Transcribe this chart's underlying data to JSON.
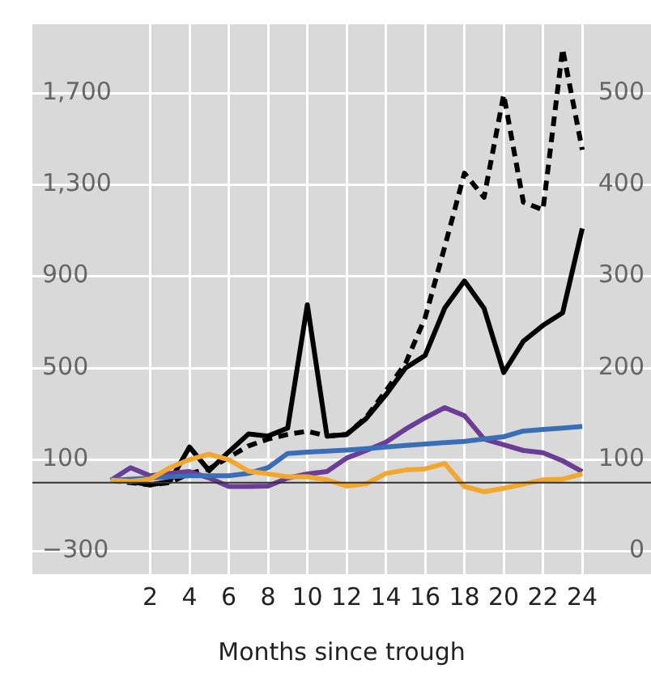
{
  "chart_data": {
    "type": "line",
    "xlabel": "Months since trough",
    "x": [
      0,
      1,
      2,
      3,
      4,
      5,
      6,
      7,
      8,
      9,
      10,
      11,
      12,
      13,
      14,
      15,
      16,
      17,
      18,
      19,
      20,
      21,
      22,
      23,
      24
    ],
    "xlim": [
      -4,
      27.5
    ],
    "xticks": [
      2,
      4,
      6,
      8,
      10,
      12,
      14,
      16,
      18,
      20,
      22,
      24
    ],
    "ylim": [
      -400,
      2000
    ],
    "yticks": [
      {
        "value": -300,
        "label": "−300"
      },
      100,
      500,
      900,
      {
        "value": 1300,
        "label": "1,300"
      },
      {
        "value": 1700,
        "label": "1,700"
      }
    ],
    "y2lim": [
      -25,
      575
    ],
    "y2ticks": [
      0,
      100,
      200,
      300,
      400,
      500
    ],
    "grid": true,
    "legend": false,
    "marker": "none",
    "ref_lines": [
      {
        "axis": "y",
        "value": 0,
        "color": "#333333"
      }
    ],
    "series": [
      {
        "color": "#f0a830",
        "values": [
          10,
          5,
          15,
          65,
          100,
          124,
          100,
          50,
          38,
          25,
          25,
          12,
          -15,
          -5,
          40,
          55,
          60,
          83,
          -17,
          -40,
          -25,
          -7,
          12,
          15,
          38
        ]
      },
      {
        "color": "#3a6fb8",
        "values": [
          10,
          15,
          20,
          25,
          30,
          30,
          30,
          40,
          65,
          127,
          133,
          137,
          142,
          148,
          155,
          162,
          168,
          174,
          180,
          190,
          200,
          225,
          232,
          238,
          245
        ]
      },
      {
        "color": "#6b3d96",
        "values": [
          10,
          65,
          30,
          40,
          48,
          20,
          -17,
          -17,
          -15,
          20,
          38,
          48,
          107,
          140,
          176,
          233,
          283,
          327,
          292,
          190,
          165,
          140,
          130,
          95,
          48
        ]
      },
      {
        "color": "#000000",
        "line_style": "dashed",
        "values": [
          10,
          0,
          -10,
          0,
          40,
          60,
          110,
          160,
          190,
          210,
          224,
          203,
          210,
          285,
          400,
          520,
          720,
          1030,
          1350,
          1245,
          1693,
          1224,
          1190,
          1893,
          1452
        ]
      },
      {
        "color": "#000000",
        "values": [
          12,
          5,
          -10,
          5,
          155,
          52,
          134,
          212,
          203,
          238,
          776,
          203,
          210,
          280,
          383,
          500,
          555,
          762,
          880,
          760,
          480,
          617,
          686,
          741,
          1109
        ]
      }
    ]
  }
}
